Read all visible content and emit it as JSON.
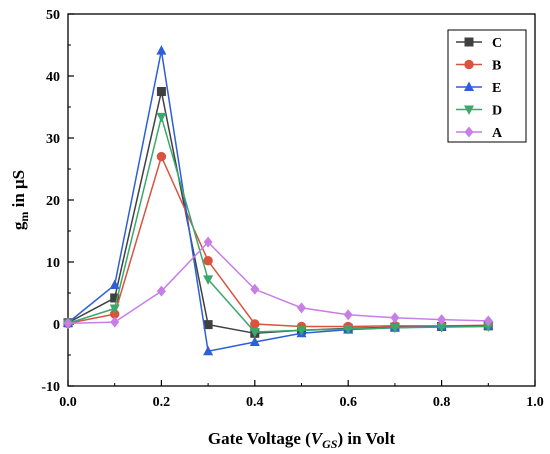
{
  "chart_data": {
    "type": "line",
    "title": "",
    "xlabel": "Gate Voltage (V_GS) in Volt",
    "xlabel_parts": {
      "prefix": "Gate Voltage (",
      "var": "V",
      "sub": "GS",
      "suffix": ") in Volt"
    },
    "ylabel": "g_m in μS",
    "ylabel_parts": {
      "g": "g",
      "sub": "m",
      "suffix": " in μS"
    },
    "xlim": [
      0.0,
      1.0
    ],
    "ylim": [
      -10,
      50
    ],
    "xticks": [
      "0.0",
      "0.2",
      "0.4",
      "0.6",
      "0.8",
      "1.0"
    ],
    "xtick_values": [
      0.0,
      0.2,
      0.4,
      0.6,
      0.8,
      1.0
    ],
    "yticks": [
      "-10",
      "0",
      "10",
      "20",
      "30",
      "40",
      "50"
    ],
    "ytick_values": [
      -10,
      0,
      10,
      20,
      30,
      40,
      50
    ],
    "grid": false,
    "legend_position": "top-right",
    "x": [
      0.0,
      0.1,
      0.2,
      0.3,
      0.4,
      0.5,
      0.6,
      0.7,
      0.8,
      0.9
    ],
    "series": [
      {
        "name": "C",
        "color": "#404040",
        "marker": "square",
        "values": [
          0.2,
          4.2,
          37.5,
          -0.1,
          -1.5,
          -1.0,
          -0.7,
          -0.5,
          -0.4,
          -0.3
        ]
      },
      {
        "name": "B",
        "color": "#d9533f",
        "marker": "circle",
        "values": [
          0.1,
          1.6,
          27.0,
          10.2,
          0.0,
          -0.4,
          -0.4,
          -0.3,
          -0.3,
          -0.2
        ]
      },
      {
        "name": "E",
        "color": "#2e5fd6",
        "marker": "triangle-up",
        "values": [
          0.2,
          6.3,
          44.1,
          -4.4,
          -2.9,
          -1.5,
          -0.9,
          -0.6,
          -0.4,
          -0.3
        ]
      },
      {
        "name": "D",
        "color": "#3aa86b",
        "marker": "triangle-down",
        "values": [
          0.1,
          2.5,
          33.4,
          7.2,
          -1.3,
          -1.0,
          -0.8,
          -0.6,
          -0.5,
          -0.4
        ]
      },
      {
        "name": "A",
        "color": "#c77fe6",
        "marker": "diamond",
        "values": [
          0.1,
          0.3,
          5.3,
          13.2,
          5.6,
          2.6,
          1.5,
          1.0,
          0.7,
          0.5
        ]
      }
    ]
  }
}
